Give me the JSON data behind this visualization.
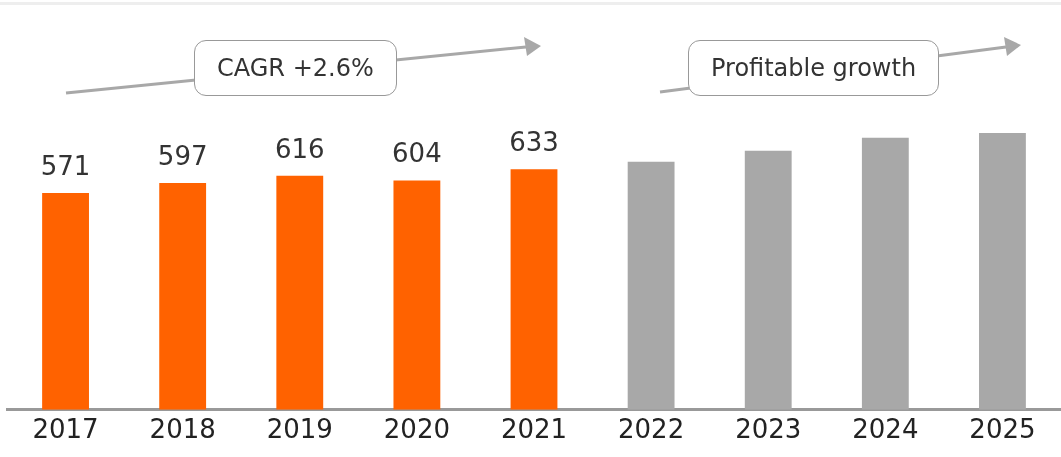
{
  "chart_data": {
    "type": "bar",
    "categories": [
      "2017",
      "2018",
      "2019",
      "2020",
      "2021",
      "2022",
      "2023",
      "2024",
      "2025"
    ],
    "values": [
      571,
      597,
      616,
      604,
      633,
      653,
      682,
      716,
      729
    ],
    "value_labels": [
      "571",
      "597",
      "616",
      "604",
      "633",
      null,
      null,
      null,
      null
    ],
    "colors": [
      "#ff6200",
      "#ff6200",
      "#ff6200",
      "#ff6200",
      "#ff6200",
      "#a8a8a8",
      "#a8a8a8",
      "#a8a8a8",
      "#a8a8a8"
    ],
    "annotations": [
      "CAGR +2.6%",
      "Profitable growth"
    ],
    "grid": false,
    "legend": false
  }
}
